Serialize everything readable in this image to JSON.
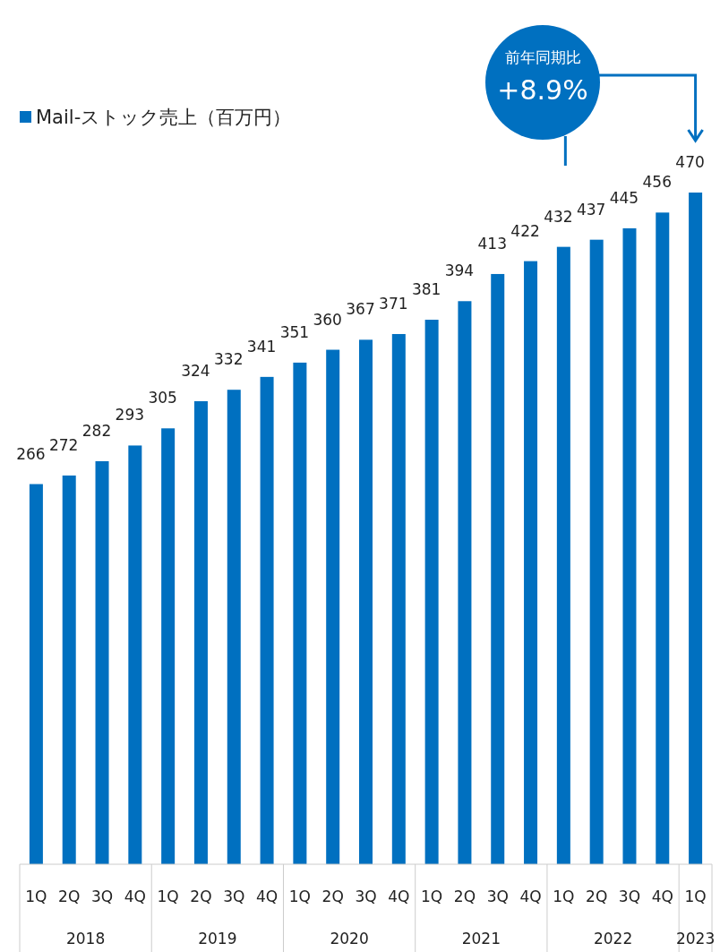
{
  "chart_data": {
    "type": "bar",
    "categories": [
      "1Q",
      "2Q",
      "3Q",
      "4Q",
      "1Q",
      "2Q",
      "3Q",
      "4Q",
      "1Q",
      "2Q",
      "3Q",
      "4Q",
      "1Q",
      "2Q",
      "3Q",
      "4Q",
      "1Q",
      "2Q",
      "3Q",
      "4Q",
      "1Q"
    ],
    "series": [
      {
        "name": "Mail-ストック売上（百万円）",
        "color": "#0070c0",
        "values": [
          266,
          272,
          282,
          293,
          305,
          324,
          332,
          341,
          351,
          360,
          367,
          371,
          381,
          394,
          413,
          422,
          432,
          437,
          445,
          456,
          470
        ]
      }
    ],
    "data_labels": true,
    "legend": "top left",
    "annotations": [
      "2018",
      "2019",
      "2020",
      "2021",
      "2022",
      "2023",
      "前年同期比",
      "+8.9%"
    ]
  }
}
